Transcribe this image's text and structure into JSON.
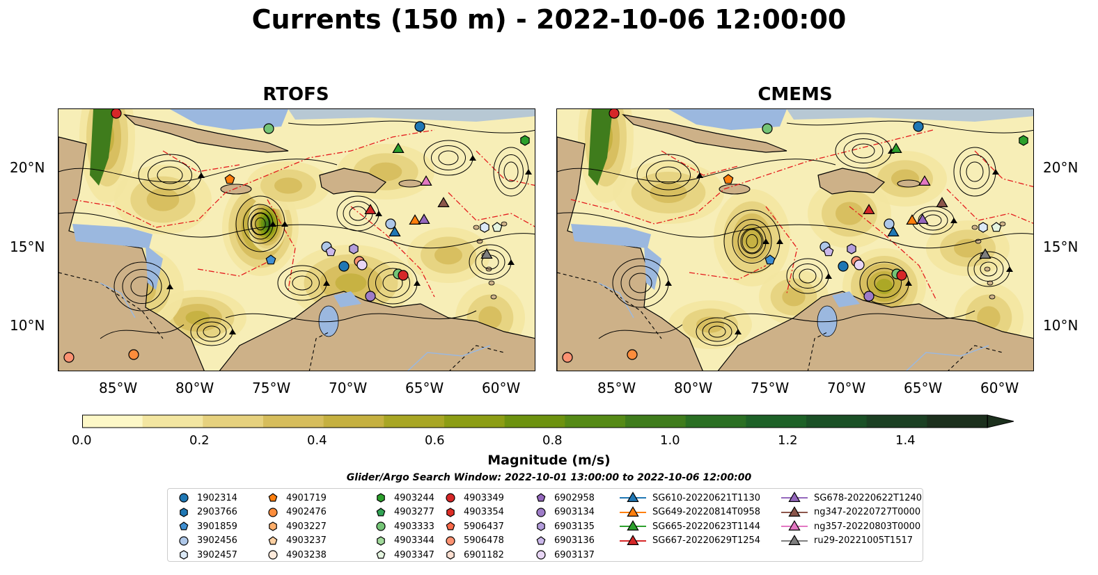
{
  "title": "Currents (150 m) - 2022-10-06 12:00:00",
  "panels": [
    {
      "title": "RTOFS"
    },
    {
      "title": "CMEMS"
    }
  ],
  "lat_ticks": [
    "20°N",
    "15°N",
    "10°N"
  ],
  "lon_ticks": [
    "85°W",
    "80°W",
    "75°W",
    "70°W",
    "65°W",
    "60°W"
  ],
  "colorbar": {
    "label": "Magnitude (m/s)",
    "ticks": [
      "0.0",
      "0.2",
      "0.4",
      "0.6",
      "0.8",
      "1.0",
      "1.2",
      "1.4"
    ],
    "range": [
      0.0,
      1.5
    ],
    "colors": [
      "#fdf8c7",
      "#f3e6a1",
      "#e6d17e",
      "#d6bd5c",
      "#c5b040",
      "#a8a624",
      "#8c9d14",
      "#6d920f",
      "#558a16",
      "#3f7c1c",
      "#2a6f23",
      "#1d6127",
      "#1a5026",
      "#1b4023",
      "#1c301d"
    ]
  },
  "search_window": "Glider/Argo Search Window: 2022-10-01 13:00:00 to 2022-10-06 12:00:00",
  "legend": {
    "columns": [
      [
        {
          "label": "1902314",
          "shape": "circle",
          "color": "#1f77b4"
        },
        {
          "label": "2903766",
          "shape": "hexagon",
          "color": "#1f77b4"
        },
        {
          "label": "3901859",
          "shape": "pentagon",
          "color": "#3f8fd2"
        },
        {
          "label": "3902456",
          "shape": "circle",
          "color": "#aec7e8"
        },
        {
          "label": "3902457",
          "shape": "hexagon",
          "color": "#dbe9f6"
        }
      ],
      [
        {
          "label": "4901719",
          "shape": "pentagon",
          "color": "#ff7f0e"
        },
        {
          "label": "4902476",
          "shape": "circle",
          "color": "#fd8d3c"
        },
        {
          "label": "4903227",
          "shape": "hexagon",
          "color": "#fdae6b"
        },
        {
          "label": "4903237",
          "shape": "pentagon",
          "color": "#fdd0a2"
        },
        {
          "label": "4903238",
          "shape": "circle",
          "color": "#feeadb"
        }
      ],
      [
        {
          "label": "4903244",
          "shape": "hexagon",
          "color": "#2ca02c"
        },
        {
          "label": "4903277",
          "shape": "pentagon",
          "color": "#31a354"
        },
        {
          "label": "4903333",
          "shape": "circle",
          "color": "#74c476"
        },
        {
          "label": "4903344",
          "shape": "hexagon",
          "color": "#a1d99b"
        },
        {
          "label": "4903347",
          "shape": "pentagon",
          "color": "#e5f5e0"
        }
      ],
      [
        {
          "label": "4903349",
          "shape": "circle",
          "color": "#d62728"
        },
        {
          "label": "4903354",
          "shape": "hexagon",
          "color": "#de2d26"
        },
        {
          "label": "5906437",
          "shape": "pentagon",
          "color": "#fb6a4a"
        },
        {
          "label": "5906478",
          "shape": "circle",
          "color": "#fc9272"
        },
        {
          "label": "6901182",
          "shape": "hexagon",
          "color": "#fee0d2"
        }
      ],
      [
        {
          "label": "6902958",
          "shape": "pentagon",
          "color": "#9467bd"
        },
        {
          "label": "6903134",
          "shape": "circle",
          "color": "#9e7cc8"
        },
        {
          "label": "6903135",
          "shape": "hexagon",
          "color": "#b39ddb"
        },
        {
          "label": "6903136",
          "shape": "pentagon",
          "color": "#cbb8ea"
        },
        {
          "label": "6903137",
          "shape": "circle",
          "color": "#e8d6f5"
        }
      ],
      [
        {
          "label": "SG610-20220621T1130",
          "shape": "triangle",
          "color": "#1f77b4"
        },
        {
          "label": "SG649-20220814T0958",
          "shape": "triangle",
          "color": "#ff7f0e"
        },
        {
          "label": "SG665-20220623T1144",
          "shape": "triangle",
          "color": "#2ca02c"
        },
        {
          "label": "SG667-20220629T1254",
          "shape": "triangle",
          "color": "#d62728"
        }
      ],
      [
        {
          "label": "SG678-20220622T1240",
          "shape": "triangle",
          "color": "#9467bd"
        },
        {
          "label": "ng347-20220727T0000",
          "shape": "triangle",
          "color": "#8c564b"
        },
        {
          "label": "ng357-20220803T0000",
          "shape": "triangle",
          "color": "#e377c2"
        },
        {
          "label": "ru29-20221005T1517",
          "shape": "triangle",
          "color": "#7f7f7f"
        }
      ]
    ]
  }
}
